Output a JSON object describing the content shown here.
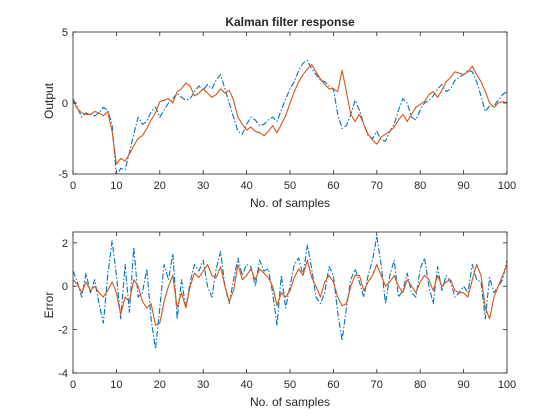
{
  "chart_data": [
    {
      "type": "line",
      "title": "Kalman filter response",
      "xlabel": "No. of samples",
      "ylabel": "Output",
      "xlim": [
        0,
        100
      ],
      "ylim": [
        -5,
        5
      ],
      "xticks": [
        0,
        10,
        20,
        30,
        40,
        50,
        60,
        70,
        80,
        90,
        100
      ],
      "yticks": [
        -5,
        0,
        5
      ],
      "grid": false,
      "series": [
        {
          "color": "#0072BD",
          "style": "dashdot",
          "x": [
            0,
            1,
            2,
            3,
            4,
            5,
            6,
            7,
            8,
            9,
            10,
            11,
            12,
            13,
            14,
            15,
            16,
            17,
            18,
            19,
            20,
            21,
            22,
            23,
            24,
            25,
            26,
            27,
            28,
            29,
            30,
            31,
            32,
            33,
            34,
            35,
            36,
            37,
            38,
            39,
            40,
            41,
            42,
            43,
            44,
            45,
            46,
            47,
            48,
            49,
            50,
            51,
            52,
            53,
            54,
            55,
            56,
            57,
            58,
            59,
            60,
            61,
            62,
            63,
            64,
            65,
            66,
            67,
            68,
            69,
            70,
            71,
            72,
            73,
            74,
            75,
            76,
            77,
            78,
            79,
            80,
            81,
            82,
            83,
            84,
            85,
            86,
            87,
            88,
            89,
            90,
            91,
            92,
            93,
            94,
            95,
            96,
            97,
            98,
            99,
            100
          ],
          "y": [
            0.3,
            -0.3,
            -1.0,
            -0.7,
            -0.8,
            -0.9,
            -0.7,
            -0.3,
            -0.5,
            -1.5,
            -5.2,
            -4.6,
            -4.7,
            -3.5,
            -2.2,
            -1.0,
            -1.5,
            -1.3,
            -0.6,
            -0.3,
            -1.0,
            -0.5,
            0.0,
            0.3,
            0.7,
            0.4,
            0.2,
            0.3,
            0.8,
            1.2,
            0.9,
            1.3,
            1.0,
            1.6,
            2.0,
            1.0,
            0.0,
            -1.0,
            -2.0,
            -2.2,
            -1.5,
            -1.0,
            -1.2,
            -1.6,
            -1.5,
            -1.2,
            -1.0,
            -1.3,
            -0.5,
            0.3,
            1.0,
            1.5,
            2.3,
            2.8,
            3.0,
            2.4,
            2.0,
            1.6,
            1.5,
            1.2,
            1.0,
            -0.8,
            -1.8,
            -1.6,
            -0.8,
            0.2,
            -0.5,
            -1.5,
            -2.3,
            -2.5,
            -2.0,
            -2.6,
            -2.7,
            -2.0,
            -1.5,
            -0.5,
            0.3,
            0.0,
            -1.0,
            -1.2,
            -0.5,
            0.0,
            0.2,
            0.5,
            1.0,
            1.3,
            0.8,
            1.0,
            1.6,
            1.8,
            2.0,
            2.3,
            2.2,
            1.5,
            0.5,
            -0.6,
            -0.2,
            -0.2,
            0.2,
            0.6,
            0.8
          ]
        },
        {
          "color": "#D95319",
          "style": "solid",
          "x": [
            0,
            1,
            2,
            3,
            4,
            5,
            6,
            7,
            8,
            9,
            10,
            11,
            12,
            13,
            14,
            15,
            16,
            17,
            18,
            19,
            20,
            21,
            22,
            23,
            24,
            25,
            26,
            27,
            28,
            29,
            30,
            31,
            32,
            33,
            34,
            35,
            36,
            37,
            38,
            39,
            40,
            41,
            42,
            43,
            44,
            45,
            46,
            47,
            48,
            49,
            50,
            51,
            52,
            53,
            54,
            55,
            56,
            57,
            58,
            59,
            60,
            61,
            62,
            63,
            64,
            65,
            66,
            67,
            68,
            69,
            70,
            71,
            72,
            73,
            74,
            75,
            76,
            77,
            78,
            79,
            80,
            81,
            82,
            83,
            84,
            85,
            86,
            87,
            88,
            89,
            90,
            91,
            92,
            93,
            94,
            95,
            96,
            97,
            98,
            99,
            100
          ],
          "y": [
            0.2,
            -0.4,
            -0.7,
            -0.8,
            -0.8,
            -0.6,
            -0.7,
            -0.9,
            -0.6,
            -2.0,
            -4.3,
            -3.9,
            -4.1,
            -3.6,
            -3.0,
            -2.5,
            -2.3,
            -1.8,
            -1.2,
            -0.7,
            0.1,
            0.2,
            0.3,
            0.0,
            0.8,
            1.0,
            1.4,
            1.2,
            0.5,
            0.7,
            1.0,
            0.7,
            0.4,
            0.6,
            1.0,
            0.7,
            0.9,
            0.2,
            -1.0,
            -1.5,
            -1.9,
            -1.7,
            -2.0,
            -2.1,
            -2.3,
            -2.0,
            -1.6,
            -2.1,
            -1.5,
            -0.9,
            0.0,
            0.8,
            1.5,
            2.0,
            2.4,
            2.7,
            2.2,
            1.7,
            1.3,
            1.0,
            1.0,
            0.8,
            2.3,
            0.8,
            -0.8,
            -1.3,
            -0.8,
            -1.5,
            -2.2,
            -2.6,
            -2.9,
            -2.4,
            -2.2,
            -2.0,
            -1.7,
            -1.2,
            -0.8,
            -1.3,
            -0.8,
            -0.3,
            -0.1,
            0.1,
            0.6,
            0.8,
            0.4,
            0.9,
            1.5,
            1.8,
            2.2,
            2.1,
            2.0,
            2.2,
            2.6,
            2.0,
            1.5,
            0.8,
            0.0,
            -0.3,
            0.0,
            0.1,
            0.0
          ]
        }
      ]
    },
    {
      "type": "line",
      "title": "",
      "xlabel": "No. of samples",
      "ylabel": "Error",
      "xlim": [
        0,
        100
      ],
      "ylim": [
        -4,
        2.5
      ],
      "xticks": [
        0,
        10,
        20,
        30,
        40,
        50,
        60,
        70,
        80,
        90,
        100
      ],
      "yticks": [
        -4,
        -2,
        0,
        2
      ],
      "grid": false,
      "series": [
        {
          "color": "#0072BD",
          "style": "dashdot",
          "x": [
            0,
            1,
            2,
            3,
            4,
            5,
            6,
            7,
            8,
            9,
            10,
            11,
            12,
            13,
            14,
            15,
            16,
            17,
            18,
            19,
            20,
            21,
            22,
            23,
            24,
            25,
            26,
            27,
            28,
            29,
            30,
            31,
            32,
            33,
            34,
            35,
            36,
            37,
            38,
            39,
            40,
            41,
            42,
            43,
            44,
            45,
            46,
            47,
            48,
            49,
            50,
            51,
            52,
            53,
            54,
            55,
            56,
            57,
            58,
            59,
            60,
            61,
            62,
            63,
            64,
            65,
            66,
            67,
            68,
            69,
            70,
            71,
            72,
            73,
            74,
            75,
            76,
            77,
            78,
            79,
            80,
            81,
            82,
            83,
            84,
            85,
            86,
            87,
            88,
            89,
            90,
            91,
            92,
            93,
            94,
            95,
            96,
            97,
            98,
            99,
            100
          ],
          "y": [
            0.7,
            0.2,
            -0.5,
            0.6,
            -0.3,
            0.3,
            -0.8,
            -1.7,
            0.5,
            2.1,
            0.5,
            -1.5,
            1.0,
            -1.2,
            1.8,
            -0.5,
            -0.3,
            0.8,
            -1.5,
            -2.9,
            -1.0,
            1.0,
            0.3,
            1.5,
            -1.5,
            0.3,
            -1.0,
            0.2,
            1.0,
            0.7,
            1.2,
            0.0,
            -0.5,
            0.8,
            1.6,
            0.0,
            -0.8,
            0.3,
            1.3,
            0.5,
            1.0,
            0.9,
            0.0,
            1.2,
            0.7,
            0.8,
            -0.3,
            -1.8,
            0.5,
            -1.0,
            0.0,
            1.0,
            1.3,
            0.5,
            1.9,
            0.8,
            -0.5,
            -0.8,
            -0.3,
            0.9,
            0.5,
            -1.2,
            -2.5,
            -1.0,
            0.3,
            0.8,
            0.2,
            -0.5,
            0.5,
            1.2,
            2.3,
            1.0,
            -0.8,
            0.5,
            1.2,
            -0.5,
            -0.2,
            0.6,
            -0.3,
            -0.5,
            0.8,
            1.3,
            0.0,
            -0.8,
            0.9,
            -0.2,
            0.5,
            0.2,
            -0.5,
            -0.3,
            0.0,
            -0.3,
            1.0,
            0.3,
            0.2,
            -1.5,
            0.4,
            -0.3,
            0.0,
            0.3,
            1.2
          ]
        },
        {
          "color": "#D95319",
          "style": "solid",
          "x": [
            0,
            1,
            2,
            3,
            4,
            5,
            6,
            7,
            8,
            9,
            10,
            11,
            12,
            13,
            14,
            15,
            16,
            17,
            18,
            19,
            20,
            21,
            22,
            23,
            24,
            25,
            26,
            27,
            28,
            29,
            30,
            31,
            32,
            33,
            34,
            35,
            36,
            37,
            38,
            39,
            40,
            41,
            42,
            43,
            44,
            45,
            46,
            47,
            48,
            49,
            50,
            51,
            52,
            53,
            54,
            55,
            56,
            57,
            58,
            59,
            60,
            61,
            62,
            63,
            64,
            65,
            66,
            67,
            68,
            69,
            70,
            71,
            72,
            73,
            74,
            75,
            76,
            77,
            78,
            79,
            80,
            81,
            82,
            83,
            84,
            85,
            86,
            87,
            88,
            89,
            90,
            91,
            92,
            93,
            94,
            95,
            96,
            97,
            98,
            99,
            100
          ],
          "y": [
            0.3,
            0.1,
            -0.3,
            0.2,
            -0.2,
            0.0,
            -0.3,
            -0.5,
            -0.2,
            0.2,
            -0.3,
            -1.3,
            -0.5,
            -0.7,
            0.3,
            0.0,
            -0.7,
            -1.0,
            -0.8,
            -1.8,
            -1.7,
            -0.7,
            0.0,
            0.5,
            -1.0,
            -0.3,
            -1.0,
            0.0,
            0.6,
            0.4,
            0.7,
            1.0,
            0.5,
            0.4,
            0.9,
            0.0,
            -0.7,
            -0.2,
            1.0,
            0.3,
            0.5,
            0.8,
            0.3,
            0.8,
            0.6,
            0.4,
            0.0,
            -0.9,
            -0.3,
            -0.5,
            -0.2,
            0.4,
            0.8,
            0.5,
            1.2,
            0.4,
            0.0,
            -0.5,
            0.2,
            0.5,
            0.2,
            -0.5,
            -0.9,
            -0.8,
            0.0,
            0.5,
            0.5,
            -0.2,
            0.2,
            0.5,
            1.0,
            0.5,
            0.0,
            0.2,
            0.5,
            0.0,
            -0.3,
            0.3,
            0.0,
            -0.3,
            0.2,
            0.5,
            0.3,
            -0.2,
            0.5,
            0.0,
            0.2,
            0.3,
            -0.2,
            -0.3,
            -0.3,
            -0.5,
            0.3,
            1.0,
            0.5,
            -1.0,
            -1.5,
            -0.5,
            0.0,
            0.5,
            1.0
          ]
        }
      ]
    }
  ]
}
